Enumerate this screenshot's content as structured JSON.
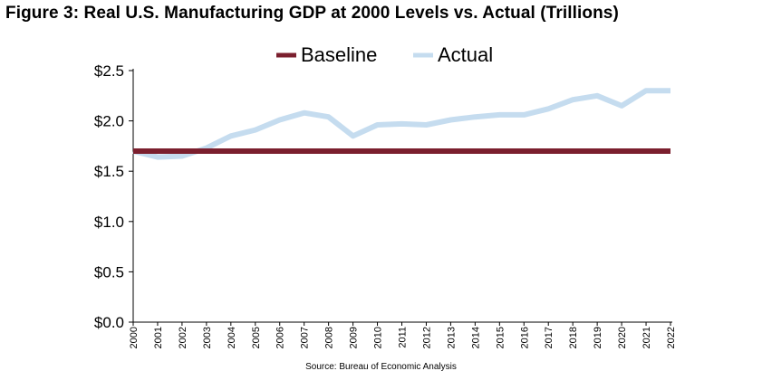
{
  "figure_title": "Figure 3: Real U.S. Manufacturing GDP at 2000 Levels vs. Actual (Trillions)",
  "source_note": "Source: Bureau of Economic Analysis",
  "chart_data": {
    "type": "line",
    "title": "Figure 3: Real U.S. Manufacturing GDP at 2000 Levels vs. Actual (Trillions)",
    "xlabel": "",
    "ylabel": "",
    "ylim": [
      0,
      2.5
    ],
    "yticks": [
      "$0.0",
      "$0.5",
      "$1.0",
      "$1.5",
      "$2.0",
      "$2.5"
    ],
    "ytick_values": [
      0,
      0.5,
      1.0,
      1.5,
      2.0,
      2.5
    ],
    "grid": false,
    "legend_position": "top-center",
    "x": [
      "2000",
      "2001",
      "2002",
      "2003",
      "2004",
      "2005",
      "2006",
      "2007",
      "2008",
      "2009",
      "2010",
      "2011",
      "2012",
      "2013",
      "2014",
      "2015",
      "2016",
      "2017",
      "2018",
      "2019",
      "2020",
      "2021",
      "2022"
    ],
    "series": [
      {
        "name": "Baseline",
        "color": "#7b1f2e",
        "values": [
          1.7,
          1.7,
          1.7,
          1.7,
          1.7,
          1.7,
          1.7,
          1.7,
          1.7,
          1.7,
          1.7,
          1.7,
          1.7,
          1.7,
          1.7,
          1.7,
          1.7,
          1.7,
          1.7,
          1.7,
          1.7,
          1.7,
          1.7
        ]
      },
      {
        "name": "Actual",
        "color": "#c5dcef",
        "values": [
          1.7,
          1.64,
          1.65,
          1.73,
          1.85,
          1.91,
          2.01,
          2.08,
          2.04,
          1.85,
          1.96,
          1.97,
          1.96,
          2.01,
          2.04,
          2.06,
          2.06,
          2.12,
          2.21,
          2.25,
          2.15,
          2.3,
          2.3
        ]
      }
    ]
  }
}
